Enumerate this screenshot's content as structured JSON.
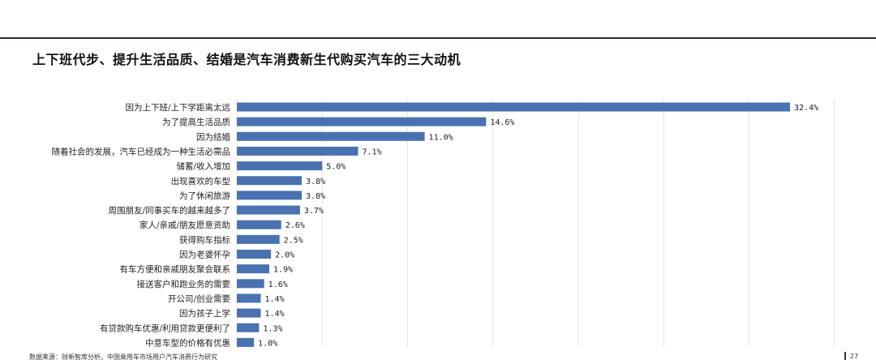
{
  "title": "上下班代步、提升生活品质、结婚是汽车消费新生代购买汽车的三大动机",
  "source": "数据来源：财新智库分析，中国乘用车市场用户汽车消费行为研究",
  "page_number": "27",
  "chart_data": {
    "type": "bar",
    "orientation": "horizontal",
    "categories": [
      "因为上下班/上下学距离太远",
      "为了提高生活品质",
      "因为结婚",
      "随着社会的发展，汽车已经成为一种生活必需品",
      "储蓄/收入增加",
      "出现喜欢的车型",
      "为了休闲旅游",
      "周围朋友/同事买车的越来越多了",
      "家人/亲戚/朋友愿意资助",
      "获得购车指标",
      "因为老婆怀孕",
      "有车方便和亲戚朋友聚会联系",
      "接送客户和跑业务的需要",
      "开公司/创业需要",
      "因为孩子上学",
      "有贷款购车优惠/利用贷款更便利了",
      "中意车型的价格有优惠"
    ],
    "values": [
      32.4,
      14.6,
      11.0,
      7.1,
      5.0,
      3.8,
      3.8,
      3.7,
      2.6,
      2.5,
      2.0,
      1.9,
      1.6,
      1.4,
      1.4,
      1.3,
      1.0
    ],
    "value_labels": [
      "32.4%",
      "14.6%",
      "11.0%",
      "7.1%",
      "5.0%",
      "3.8%",
      "3.8%",
      "3.7%",
      "2.6%",
      "2.5%",
      "2.0%",
      "1.9%",
      "1.6%",
      "1.4%",
      "1.4%",
      "1.3%",
      "1.0%"
    ],
    "xlim": [
      0,
      35
    ],
    "grid": true,
    "bar_color": "#4a72b0",
    "grid_color": "#e6e6e6"
  }
}
